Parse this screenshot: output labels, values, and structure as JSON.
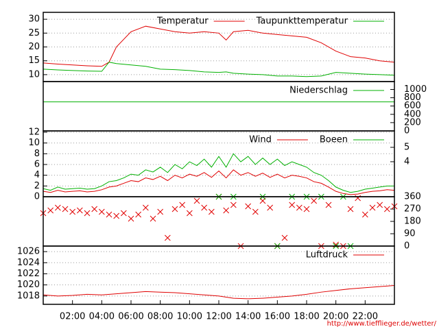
{
  "chart_data": [
    {
      "type": "line",
      "xlim": [
        0,
        24
      ],
      "ylim": [
        7.5,
        32.5
      ],
      "yticks": [
        10,
        15,
        20,
        25,
        30
      ],
      "grid": true,
      "x": [
        0,
        1,
        2,
        3,
        4,
        4.5,
        5,
        6,
        7,
        8,
        9,
        10,
        11,
        12,
        12.5,
        13,
        14,
        15,
        16,
        17,
        18,
        19,
        20,
        21,
        22,
        23,
        24
      ],
      "series": [
        {
          "name": "Temperatur",
          "color": "#e00000",
          "values": [
            14.2,
            13.8,
            13.5,
            13.2,
            13.0,
            14.5,
            20,
            25.5,
            27.5,
            26.5,
            25.5,
            25,
            25.5,
            25,
            22.5,
            25.5,
            26,
            25,
            24.5,
            24,
            23.5,
            21.5,
            18.5,
            16.5,
            16,
            15,
            14.5
          ]
        },
        {
          "name": "Taupunkttemperatur",
          "color": "#00b000",
          "values": [
            12,
            11.7,
            11.5,
            11.3,
            11.2,
            14.5,
            14,
            13.5,
            13,
            12,
            11.8,
            11.5,
            11,
            10.8,
            11,
            10.5,
            10.2,
            10,
            9.5,
            9.5,
            9.3,
            9.5,
            10.8,
            10.5,
            10.2,
            10,
            9.8
          ]
        }
      ]
    },
    {
      "type": "line",
      "xlim": [
        0,
        24
      ],
      "y2lim": [
        0,
        1190
      ],
      "y2ticks": [
        0,
        200,
        400,
        600,
        800,
        1000
      ],
      "x": [
        0,
        24
      ],
      "series": [
        {
          "name": "Niederschlag",
          "color": "#00b000",
          "axis": "y2",
          "values": [
            700,
            700
          ]
        }
      ]
    },
    {
      "type": "line",
      "xlim": [
        0,
        24
      ],
      "ylim": [
        0,
        12.25
      ],
      "yticks": [
        0,
        2,
        4,
        6,
        8,
        10,
        12
      ],
      "grid": true,
      "y2lim": [
        1.57,
        6.14
      ],
      "y2ticks": [
        4,
        5
      ],
      "x": [
        0,
        0.5,
        1,
        1.5,
        2,
        2.5,
        3,
        3.5,
        4,
        4.5,
        5,
        5.5,
        6,
        6.5,
        7,
        7.5,
        8,
        8.5,
        9,
        9.5,
        10,
        10.5,
        11,
        11.5,
        12,
        12.5,
        13,
        13.5,
        14,
        14.5,
        15,
        15.5,
        16,
        16.5,
        17,
        17.5,
        18,
        18.5,
        19,
        19.5,
        20,
        20.5,
        21,
        21.5,
        22,
        22.5,
        23,
        23.5,
        24
      ],
      "series": [
        {
          "name": "Wind",
          "color": "#e00000",
          "values": [
            1.0,
            0.8,
            1.2,
            0.9,
            1.0,
            1.1,
            0.9,
            1.0,
            1.3,
            1.8,
            2.0,
            2.5,
            3.0,
            2.8,
            3.5,
            3.2,
            3.8,
            3.0,
            4.0,
            3.5,
            4.2,
            3.8,
            4.5,
            3.6,
            4.8,
            3.5,
            5.0,
            4.0,
            4.5,
            3.8,
            4.4,
            3.6,
            4.2,
            3.5,
            4.0,
            3.8,
            3.5,
            2.8,
            2.5,
            1.8,
            1.0,
            0.6,
            0.4,
            0.5,
            0.8,
            1.0,
            1.1,
            1.3,
            1.2
          ]
        },
        {
          "name": "Boeen",
          "color": "#00b000",
          "values": [
            1.5,
            1.2,
            1.8,
            1.4,
            1.5,
            1.6,
            1.4,
            1.5,
            2.0,
            2.8,
            3.0,
            3.5,
            4.2,
            4.0,
            5.0,
            4.6,
            5.5,
            4.5,
            6.0,
            5.2,
            6.5,
            5.8,
            7.0,
            5.5,
            7.5,
            5.5,
            8.0,
            6.5,
            7.5,
            6.0,
            7.2,
            6.0,
            7.0,
            5.8,
            6.5,
            6.0,
            5.5,
            4.5,
            4.0,
            3.0,
            1.8,
            1.2,
            0.8,
            1.0,
            1.4,
            1.6,
            1.8,
            2.0,
            2.0
          ]
        }
      ]
    },
    {
      "type": "scatter",
      "xlim": [
        0,
        24
      ],
      "y2lim": [
        0,
        360
      ],
      "y2ticks": [
        0,
        90,
        180,
        270,
        360
      ],
      "series": [
        {
          "color": "#e00000",
          "axis": "y2",
          "x": [
            0,
            0.5,
            1,
            1.5,
            2,
            2.5,
            3,
            3.5,
            4,
            4.5,
            5,
            5.5,
            6,
            6.5,
            7,
            7.5,
            8,
            8.5,
            9,
            9.5,
            10,
            10.5,
            11,
            11.5,
            12,
            12.5,
            13,
            13.5,
            14,
            14.5,
            15,
            15.5,
            16,
            16.5,
            17,
            17.5,
            18,
            18.5,
            19,
            19.5,
            20,
            20.5,
            21,
            21.5,
            22,
            22.5,
            23,
            23.5,
            24
          ],
          "values": [
            240,
            260,
            280,
            270,
            250,
            260,
            240,
            270,
            250,
            230,
            220,
            240,
            200,
            230,
            280,
            200,
            250,
            60,
            270,
            300,
            240,
            330,
            280,
            250,
            360,
            260,
            300,
            0,
            290,
            250,
            330,
            280,
            0,
            60,
            300,
            280,
            270,
            330,
            0,
            300,
            10,
            0,
            270,
            350,
            230,
            280,
            300,
            270,
            290
          ]
        },
        {
          "color": "#00b000",
          "axis": "y2",
          "x": [
            12,
            13,
            15,
            16,
            17,
            18,
            19,
            20,
            20.5,
            21
          ],
          "values": [
            360,
            360,
            360,
            0,
            360,
            360,
            360,
            0,
            360,
            0
          ]
        }
      ]
    },
    {
      "type": "line",
      "xlim": [
        0,
        24
      ],
      "ylim": [
        1016.5,
        1027
      ],
      "yticks": [
        1018,
        1020,
        1022,
        1024,
        1026
      ],
      "grid": true,
      "xticks": [
        {
          "value": 2,
          "label": "02:00"
        },
        {
          "value": 4,
          "label": "04:00"
        },
        {
          "value": 6,
          "label": "06:00"
        },
        {
          "value": 8,
          "label": "08:00"
        },
        {
          "value": 10,
          "label": "10:00"
        },
        {
          "value": 12,
          "label": "12:00"
        },
        {
          "value": 14,
          "label": "14:00"
        },
        {
          "value": 16,
          "label": "16:00"
        },
        {
          "value": 18,
          "label": "18:00"
        },
        {
          "value": 20,
          "label": "20:00"
        },
        {
          "value": 22,
          "label": "22:00"
        }
      ],
      "x": [
        0,
        1,
        2,
        3,
        4,
        5,
        6,
        7,
        8,
        9,
        10,
        11,
        12,
        13,
        14,
        15,
        16,
        17,
        18,
        19,
        20,
        21,
        22,
        23,
        24
      ],
      "series": [
        {
          "name": "Luftdruck",
          "color": "#e00000",
          "values": [
            1018.2,
            1018.0,
            1018.1,
            1018.3,
            1018.2,
            1018.4,
            1018.6,
            1018.8,
            1018.7,
            1018.6,
            1018.4,
            1018.2,
            1018.0,
            1017.6,
            1017.5,
            1017.6,
            1017.8,
            1018.0,
            1018.3,
            1018.7,
            1019.0,
            1019.3,
            1019.5,
            1019.7,
            1019.9
          ]
        }
      ]
    }
  ],
  "footer": "http://www.tiefflieger.de/wetter/"
}
